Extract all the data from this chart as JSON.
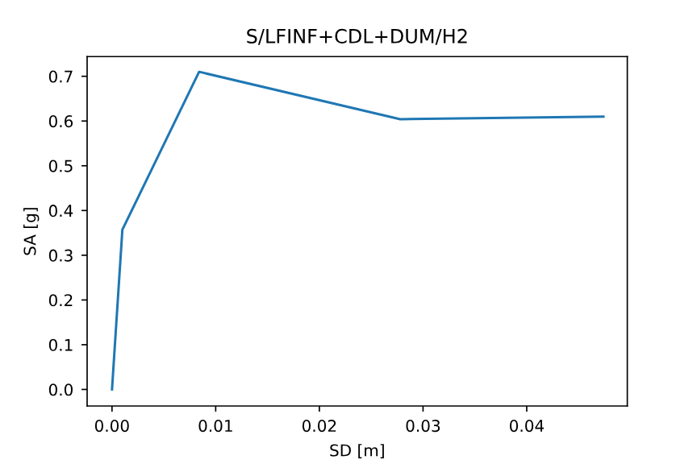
{
  "chart_data": {
    "type": "line",
    "title": "S/LFINF+CDL+DUM/H2",
    "xlabel": "SD [m]",
    "ylabel": "SA [g]",
    "x": [
      0,
      0.001,
      0.0084,
      0.0278,
      0.0474
    ],
    "series": [
      {
        "color": "#1f77b4",
        "values": [
          0,
          0.357,
          0.71,
          0.604,
          0.61
        ]
      }
    ],
    "xlim": [
      -0.0024,
      0.0497
    ],
    "ylim": [
      -0.037,
      0.744
    ],
    "xticks": [
      {
        "value": 0,
        "label": "0.00"
      },
      0.01,
      0.02,
      0.03,
      0.04
    ],
    "yticks": [
      {
        "value": 0,
        "label": "0.0"
      },
      0.1,
      0.2,
      0.3,
      0.4,
      0.5,
      0.6,
      0.7
    ],
    "grid": false,
    "legend": false,
    "marker": "none",
    "line_style": "solid"
  }
}
